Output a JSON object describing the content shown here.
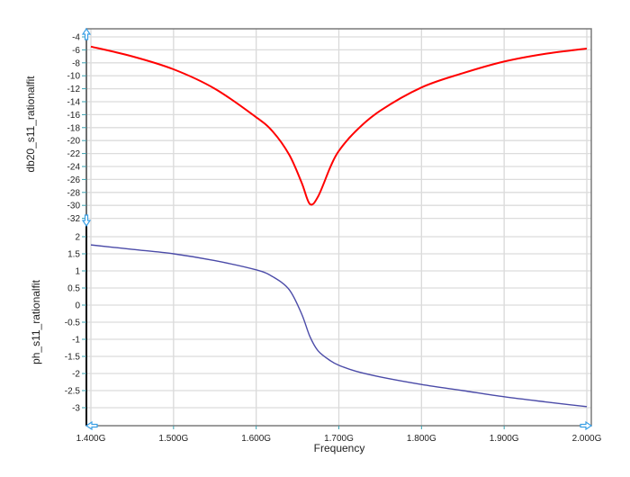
{
  "chart_data": {
    "type": "line",
    "xlabel": "Frequency",
    "x_ticks": [
      "1.400G",
      "1.500G",
      "1.600G",
      "1.700G",
      "1.800G",
      "1.900G",
      "2.000G"
    ],
    "x_tick_values": [
      1.4,
      1.5,
      1.6,
      1.7,
      1.8,
      1.9,
      2.0
    ],
    "xlim": [
      1.4,
      2.0
    ],
    "grid": true,
    "panels": [
      {
        "name": "db20_s11_rationalfit",
        "ylabel": "db20_s11_rationalfit",
        "ylim": [
          -32,
          -4
        ],
        "y_ticks": [
          "-4",
          "-6",
          "-8",
          "-10",
          "-12",
          "-14",
          "-16",
          "-18",
          "-20",
          "-22",
          "-24",
          "-26",
          "-28",
          "-30",
          "-32"
        ],
        "y_tick_values": [
          -4,
          -6,
          -8,
          -10,
          -12,
          -14,
          -16,
          -18,
          -20,
          -22,
          -24,
          -26,
          -28,
          -30,
          -32
        ],
        "color": "#ff0000",
        "x": [
          1.4,
          1.45,
          1.5,
          1.55,
          1.6,
          1.62,
          1.64,
          1.655,
          1.665,
          1.675,
          1.69,
          1.7,
          1.72,
          1.75,
          1.8,
          1.85,
          1.9,
          1.95,
          2.0
        ],
        "y": [
          -5.5,
          -7.0,
          -9.0,
          -12.0,
          -16.4,
          -18.6,
          -22.2,
          -26.5,
          -29.8,
          -28.6,
          -24.0,
          -21.6,
          -18.6,
          -15.4,
          -11.8,
          -9.6,
          -7.8,
          -6.6,
          -5.8
        ]
      },
      {
        "name": "ph_s11_rationalfit",
        "ylabel": "ph_s11_rationalfit",
        "ylim": [
          -3.5,
          2.3
        ],
        "y_ticks": [
          "2",
          "1.5",
          "1",
          "0.5",
          "0",
          "-0.5",
          "-1",
          "-1.5",
          "-2",
          "-2.5",
          "-3"
        ],
        "y_tick_values": [
          2,
          1.5,
          1,
          0.5,
          0,
          -0.5,
          -1,
          -1.5,
          -2,
          -2.5,
          -3
        ],
        "color": "#4b4ba8",
        "x": [
          1.4,
          1.45,
          1.5,
          1.55,
          1.6,
          1.62,
          1.64,
          1.655,
          1.665,
          1.675,
          1.69,
          1.7,
          1.72,
          1.75,
          1.8,
          1.85,
          1.9,
          1.95,
          2.0
        ],
        "y": [
          1.76,
          1.63,
          1.5,
          1.3,
          1.03,
          0.83,
          0.45,
          -0.26,
          -0.92,
          -1.34,
          -1.63,
          -1.76,
          -1.93,
          -2.1,
          -2.32,
          -2.5,
          -2.68,
          -2.83,
          -2.97
        ]
      }
    ]
  }
}
